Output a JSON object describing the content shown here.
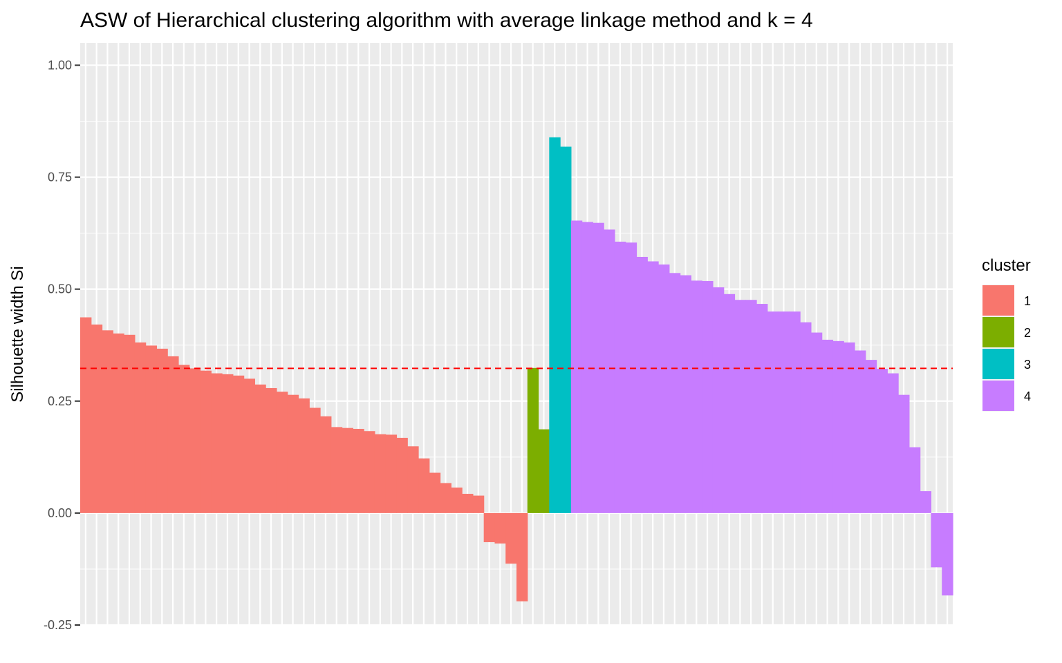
{
  "chart_data": {
    "type": "bar",
    "title": "ASW of Hierarchical clustering algorithm with average linkage method and k = 4",
    "xlabel": "",
    "ylabel": "Silhouette width Si",
    "ylim": [
      -0.25,
      1.05
    ],
    "yticks": [
      -0.25,
      0.0,
      0.25,
      0.5,
      0.75,
      1.0
    ],
    "ytick_labels": [
      "-0.25",
      "0.00",
      "0.25",
      "0.50",
      "0.75",
      "1.00"
    ],
    "average_silhouette": 0.323,
    "average_line_color": "#ff0000",
    "grid": true,
    "legend": {
      "title": "cluster",
      "position": "right",
      "entries": [
        {
          "label": "1",
          "color": "#F8766D"
        },
        {
          "label": "2",
          "color": "#7CAE00"
        },
        {
          "label": "3",
          "color": "#00BFC4"
        },
        {
          "label": "4",
          "color": "#C77CFF"
        }
      ]
    },
    "colors": {
      "1": "#F8766D",
      "2": "#7CAE00",
      "3": "#00BFC4",
      "4": "#C77CFF"
    },
    "series": [
      {
        "cluster": "1",
        "values": [
          0.437,
          0.421,
          0.408,
          0.401,
          0.398,
          0.381,
          0.374,
          0.367,
          0.35,
          0.331,
          0.323,
          0.318,
          0.312,
          0.31,
          0.307,
          0.3,
          0.287,
          0.279,
          0.271,
          0.264,
          0.256,
          0.235,
          0.216,
          0.192,
          0.19,
          0.188,
          0.183,
          0.176,
          0.175,
          0.168,
          0.149,
          0.122,
          0.09,
          0.067,
          0.057,
          0.043,
          0.039,
          -0.065,
          -0.068,
          -0.113,
          -0.197
        ]
      },
      {
        "cluster": "2",
        "values": [
          0.324,
          0.187
        ]
      },
      {
        "cluster": "3",
        "values": [
          0.839,
          0.818
        ]
      },
      {
        "cluster": "4",
        "values": [
          0.653,
          0.65,
          0.648,
          0.633,
          0.606,
          0.604,
          0.572,
          0.562,
          0.555,
          0.536,
          0.531,
          0.519,
          0.518,
          0.504,
          0.489,
          0.476,
          0.476,
          0.467,
          0.45,
          0.45,
          0.45,
          0.426,
          0.403,
          0.387,
          0.384,
          0.381,
          0.363,
          0.342,
          0.322,
          0.312,
          0.264,
          0.147,
          0.049,
          -0.121,
          -0.184
        ]
      }
    ]
  }
}
